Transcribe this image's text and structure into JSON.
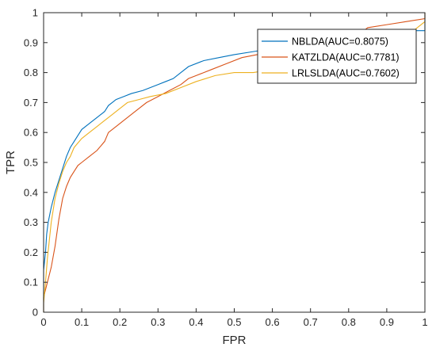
{
  "chart_data": {
    "type": "line",
    "title": "",
    "xlabel": "FPR",
    "ylabel": "TPR",
    "xlim": [
      0,
      1
    ],
    "ylim": [
      0,
      1
    ],
    "xticks": [
      "0",
      "0.1",
      "0.2",
      "0.3",
      "0.4",
      "0.5",
      "0.6",
      "0.7",
      "0.8",
      "0.9",
      "1"
    ],
    "yticks": [
      "0",
      "0.1",
      "0.2",
      "0.3",
      "0.4",
      "0.5",
      "0.6",
      "0.7",
      "0.8",
      "0.9",
      "1"
    ],
    "grid": false,
    "legend_position": "top-right",
    "series": [
      {
        "name": "NBLDA(AUC=0.8075)",
        "color": "#0072BD",
        "points": [
          [
            0,
            0
          ],
          [
            0,
            0.14
          ],
          [
            0.005,
            0.2
          ],
          [
            0.008,
            0.26
          ],
          [
            0.012,
            0.3
          ],
          [
            0.02,
            0.35
          ],
          [
            0.03,
            0.4
          ],
          [
            0.04,
            0.44
          ],
          [
            0.05,
            0.48
          ],
          [
            0.06,
            0.52
          ],
          [
            0.07,
            0.55
          ],
          [
            0.08,
            0.57
          ],
          [
            0.09,
            0.59
          ],
          [
            0.1,
            0.61
          ],
          [
            0.12,
            0.63
          ],
          [
            0.14,
            0.65
          ],
          [
            0.16,
            0.67
          ],
          [
            0.17,
            0.69
          ],
          [
            0.19,
            0.71
          ],
          [
            0.21,
            0.72
          ],
          [
            0.23,
            0.73
          ],
          [
            0.26,
            0.74
          ],
          [
            0.28,
            0.75
          ],
          [
            0.3,
            0.76
          ],
          [
            0.32,
            0.77
          ],
          [
            0.34,
            0.78
          ],
          [
            0.36,
            0.8
          ],
          [
            0.38,
            0.82
          ],
          [
            0.42,
            0.84
          ],
          [
            0.46,
            0.85
          ],
          [
            0.5,
            0.86
          ],
          [
            0.55,
            0.87
          ],
          [
            0.6,
            0.88
          ],
          [
            0.65,
            0.88
          ],
          [
            0.7,
            0.89
          ],
          [
            0.8,
            0.9
          ],
          [
            0.9,
            0.92
          ],
          [
            0.95,
            0.93
          ],
          [
            0.96,
            0.94
          ],
          [
            1,
            0.94
          ],
          [
            1,
            1
          ]
        ]
      },
      {
        "name": "KATZLDA(AUC=0.7781)",
        "color": "#D95319",
        "points": [
          [
            0,
            0
          ],
          [
            0,
            0.05
          ],
          [
            0.01,
            0.1
          ],
          [
            0.02,
            0.15
          ],
          [
            0.03,
            0.22
          ],
          [
            0.04,
            0.31
          ],
          [
            0.05,
            0.38
          ],
          [
            0.06,
            0.42
          ],
          [
            0.07,
            0.45
          ],
          [
            0.08,
            0.47
          ],
          [
            0.09,
            0.49
          ],
          [
            0.1,
            0.5
          ],
          [
            0.12,
            0.52
          ],
          [
            0.14,
            0.54
          ],
          [
            0.16,
            0.57
          ],
          [
            0.17,
            0.6
          ],
          [
            0.19,
            0.62
          ],
          [
            0.21,
            0.64
          ],
          [
            0.24,
            0.67
          ],
          [
            0.27,
            0.7
          ],
          [
            0.3,
            0.72
          ],
          [
            0.33,
            0.74
          ],
          [
            0.36,
            0.76
          ],
          [
            0.38,
            0.78
          ],
          [
            0.4,
            0.79
          ],
          [
            0.44,
            0.81
          ],
          [
            0.48,
            0.83
          ],
          [
            0.52,
            0.85
          ],
          [
            0.56,
            0.86
          ],
          [
            0.6,
            0.87
          ],
          [
            0.65,
            0.88
          ],
          [
            0.7,
            0.89
          ],
          [
            0.8,
            0.9
          ],
          [
            0.85,
            0.95
          ],
          [
            0.9,
            0.96
          ],
          [
            0.95,
            0.97
          ],
          [
            1,
            0.98
          ],
          [
            1,
            1
          ]
        ]
      },
      {
        "name": "LRLSLDA(AUC=0.7602)",
        "color": "#EDB120",
        "points": [
          [
            0,
            0
          ],
          [
            0,
            0.03
          ],
          [
            0.005,
            0.1
          ],
          [
            0.01,
            0.18
          ],
          [
            0.015,
            0.24
          ],
          [
            0.02,
            0.3
          ],
          [
            0.03,
            0.38
          ],
          [
            0.04,
            0.43
          ],
          [
            0.05,
            0.47
          ],
          [
            0.06,
            0.5
          ],
          [
            0.07,
            0.52
          ],
          [
            0.08,
            0.55
          ],
          [
            0.1,
            0.58
          ],
          [
            0.12,
            0.6
          ],
          [
            0.14,
            0.62
          ],
          [
            0.16,
            0.64
          ],
          [
            0.18,
            0.66
          ],
          [
            0.2,
            0.68
          ],
          [
            0.22,
            0.7
          ],
          [
            0.25,
            0.71
          ],
          [
            0.28,
            0.72
          ],
          [
            0.32,
            0.73
          ],
          [
            0.36,
            0.75
          ],
          [
            0.4,
            0.77
          ],
          [
            0.45,
            0.79
          ],
          [
            0.5,
            0.8
          ],
          [
            0.55,
            0.8
          ],
          [
            0.6,
            0.81
          ],
          [
            0.65,
            0.82
          ],
          [
            0.7,
            0.83
          ],
          [
            0.8,
            0.85
          ],
          [
            0.9,
            0.88
          ],
          [
            0.95,
            0.92
          ],
          [
            0.98,
            0.95
          ],
          [
            1,
            0.97
          ],
          [
            1,
            1
          ]
        ]
      }
    ]
  }
}
